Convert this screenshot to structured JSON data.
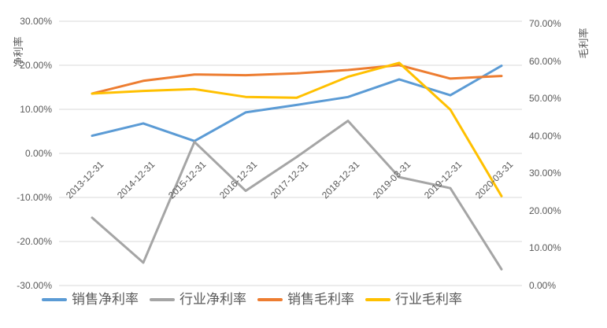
{
  "colors": {
    "background": "#FFFFFF",
    "gridline": "#D9D9D9",
    "axis_text": "#595959"
  },
  "chart_data": {
    "type": "line",
    "title": "",
    "grid": true,
    "legend_position": "bottom",
    "categories": [
      "2013-12-31",
      "2014-12-31",
      "2015-12-31",
      "2016-12-31",
      "2017-12-31",
      "2018-12-31",
      "2019-03-31",
      "2019-12-31",
      "2020-03-31"
    ],
    "left_axis": {
      "label": "净利率",
      "min": -30,
      "max": 30,
      "step": 10,
      "ticks": [
        {
          "v": 30,
          "label": "30.00%"
        },
        {
          "v": 20,
          "label": "20.00%"
        },
        {
          "v": 10,
          "label": "10.00%"
        },
        {
          "v": 0,
          "label": "0.00%"
        },
        {
          "v": -10,
          "label": "-10.00%"
        },
        {
          "v": -20,
          "label": "-20.00%"
        },
        {
          "v": -30,
          "label": "-30.00%"
        }
      ]
    },
    "right_axis": {
      "label": "毛利率",
      "min": 0,
      "max": 70,
      "step": 10,
      "ticks": [
        {
          "v": 70,
          "label": "70.00%"
        },
        {
          "v": 60,
          "label": "60.00%"
        },
        {
          "v": 50,
          "label": "50.00%"
        },
        {
          "v": 40,
          "label": "40.00%"
        },
        {
          "v": 30,
          "label": "30.00%"
        },
        {
          "v": 20,
          "label": "20.00%"
        },
        {
          "v": 10,
          "label": "10.00%"
        },
        {
          "v": 0,
          "label": "0.00%"
        }
      ]
    },
    "series": [
      {
        "name": "销售净利率",
        "axis": "left",
        "color": "#5B9BD5",
        "values": [
          4.0,
          6.8,
          2.8,
          9.3,
          11.0,
          12.8,
          16.8,
          13.2,
          19.9
        ]
      },
      {
        "name": "行业净利率",
        "axis": "left",
        "color": "#A5A5A5",
        "values": [
          -14.6,
          -24.8,
          2.6,
          -8.5,
          -0.8,
          7.4,
          -5.4,
          -7.9,
          -26.3
        ]
      },
      {
        "name": "销售毛利率",
        "axis": "right",
        "color": "#ED7D31",
        "values": [
          51.3,
          54.7,
          56.4,
          56.2,
          56.7,
          57.6,
          58.9,
          55.3,
          56.0
        ]
      },
      {
        "name": "行业毛利率",
        "axis": "right",
        "color": "#FFC000",
        "values": [
          51.3,
          52.0,
          52.5,
          50.4,
          50.2,
          55.8,
          59.5,
          47.0,
          23.9
        ]
      }
    ]
  }
}
